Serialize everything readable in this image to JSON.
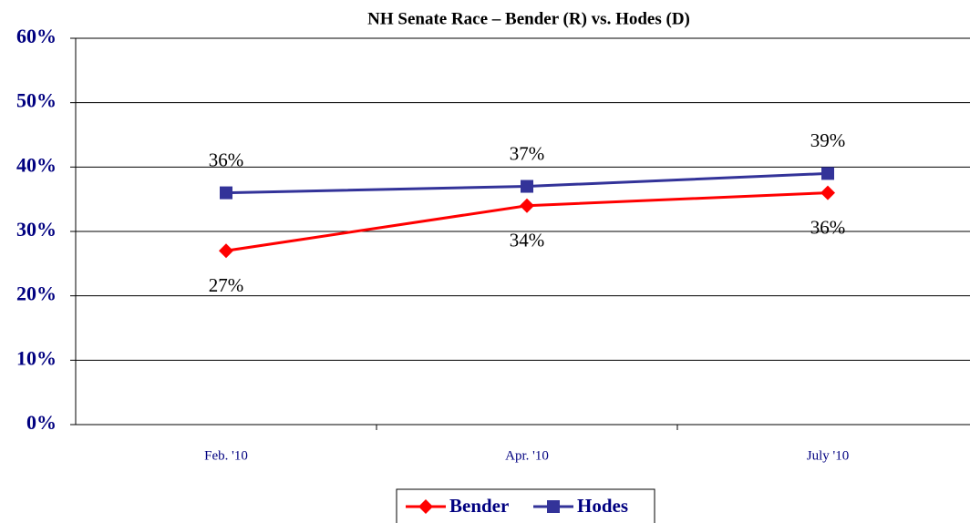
{
  "chart_data": {
    "type": "line",
    "title": "NH Senate Race – Bender (R) vs. Hodes (D)",
    "categories": [
      "Feb. '10",
      "Apr. '10",
      "July '10"
    ],
    "series": [
      {
        "name": "Bender",
        "color": "#ff0000",
        "marker": "diamond",
        "values": [
          27,
          34,
          36
        ],
        "value_labels": [
          "27%",
          "34%",
          "36%"
        ]
      },
      {
        "name": "Hodes",
        "color": "#333399",
        "marker": "square",
        "values": [
          36,
          37,
          39
        ],
        "value_labels": [
          "36%",
          "37%",
          "39%"
        ]
      }
    ],
    "ylim": [
      0,
      60
    ],
    "yticks": [
      {
        "value": 0,
        "label": "0%"
      },
      {
        "value": 10,
        "label": "10%"
      },
      {
        "value": 20,
        "label": "20%"
      },
      {
        "value": 30,
        "label": "30%"
      },
      {
        "value": 40,
        "label": "40%"
      },
      {
        "value": 50,
        "label": "50%"
      },
      {
        "value": 60,
        "label": "60%"
      }
    ],
    "grid": true,
    "legend": "bottom"
  }
}
